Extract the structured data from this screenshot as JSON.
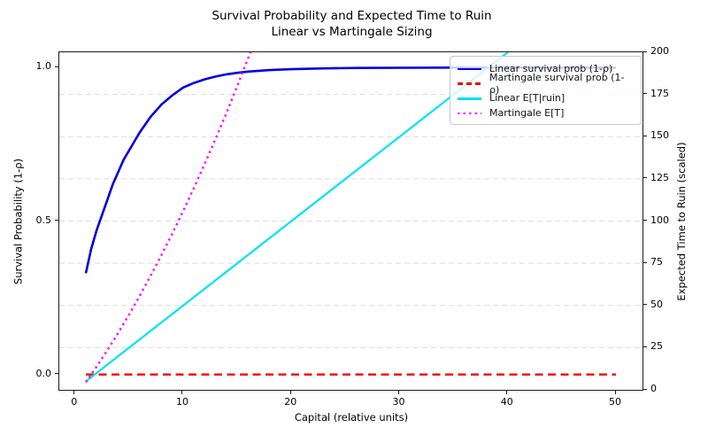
{
  "title": {
    "line1": "Survival Probability and Expected Time to Ruin",
    "line2": "Linear vs Martingale Sizing"
  },
  "chart_data": {
    "type": "line",
    "title": "Survival Probability and Expected Time to Ruin — Linear vs Martingale Sizing",
    "xlabel": "Capital (relative units)",
    "ylabel_left": "Survival Probability (1-ρ)",
    "ylabel_right": "Expected Time to Ruin (scaled)",
    "xlim": [
      -1.45,
      52.45
    ],
    "ylim_left": [
      -0.05,
      1.05
    ],
    "ylim_right": [
      0,
      200
    ],
    "xticks": [
      0,
      10,
      20,
      30,
      40,
      50
    ],
    "yticks_left": [
      "0.0",
      "0.5",
      "1.0"
    ],
    "yticks_left_values": [
      0.0,
      0.5,
      1.0
    ],
    "yticks_right": [
      0,
      25,
      50,
      75,
      100,
      125,
      150,
      175,
      200
    ],
    "grid": {
      "axis": "right",
      "values": [
        25,
        50,
        75,
        100,
        125,
        150,
        175
      ],
      "style": "dashed",
      "color": "#dcdcdc"
    },
    "legend_position": "upper right",
    "series": [
      {
        "name": "Linear survival prob (1-ρ)",
        "axis": "left",
        "color": "#0000dd",
        "dash": "solid",
        "width": 2.6,
        "x": [
          1,
          1.5,
          2,
          2.5,
          3,
          3.5,
          4,
          4.5,
          5,
          5.5,
          6,
          7,
          8,
          9,
          10,
          11,
          12,
          13,
          14,
          15,
          16,
          18,
          20,
          23,
          26,
          30,
          35,
          40,
          45,
          50
        ],
        "y": [
          0.33,
          0.41,
          0.47,
          0.52,
          0.57,
          0.62,
          0.66,
          0.7,
          0.73,
          0.76,
          0.79,
          0.84,
          0.88,
          0.91,
          0.935,
          0.95,
          0.962,
          0.971,
          0.978,
          0.983,
          0.987,
          0.992,
          0.995,
          0.9975,
          0.999,
          0.9995,
          1.0,
          1.0,
          1.0,
          1.0
        ]
      },
      {
        "name": "Martingale survival prob (1-ρ)",
        "axis": "left",
        "color": "#ee0000",
        "dash": "dashed",
        "width": 2.4,
        "x": [
          1,
          50
        ],
        "y": [
          0.0,
          0.0
        ]
      },
      {
        "name": "Linear E[T|ruin]",
        "axis": "right",
        "color": "#00e2ee",
        "dash": "solid",
        "width": 2.2,
        "x": [
          1,
          40
        ],
        "y": [
          5,
          200
        ]
      },
      {
        "name": "Martingale E[T]",
        "axis": "right",
        "color": "#ff00ff",
        "dash": "dotted",
        "width": 2.4,
        "x": [
          1,
          2,
          3,
          4,
          5,
          6,
          7,
          8,
          9,
          10,
          11,
          12,
          13,
          14,
          15,
          16,
          16.6
        ],
        "y": [
          4.5,
          13.8,
          23.5,
          33.8,
          44.6,
          55.9,
          67.7,
          79.9,
          92.7,
          106,
          119.7,
          134,
          148.8,
          164.1,
          180,
          196.4,
          206
        ]
      }
    ]
  },
  "legend": {
    "items": [
      {
        "label": "Linear survival prob (1-ρ)"
      },
      {
        "label": "Martingale survival prob (1-ρ)"
      },
      {
        "label": "Linear E[T|ruin]"
      },
      {
        "label": "Martingale E[T]"
      }
    ]
  }
}
